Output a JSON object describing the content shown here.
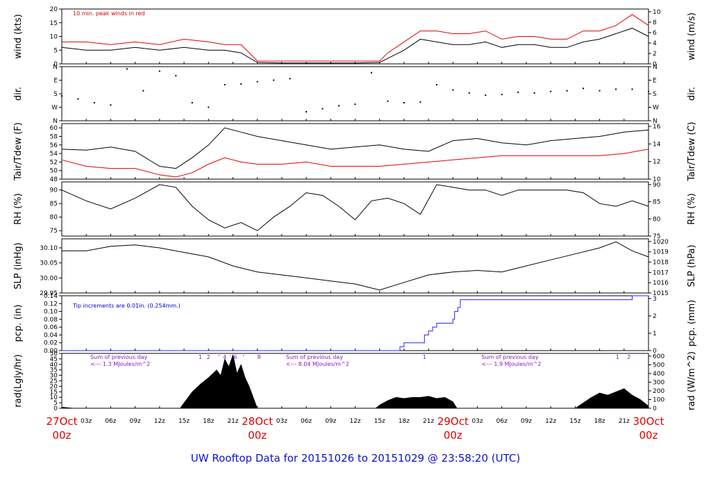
{
  "footer": "UW Rooftop Data for 20151026  to  20151029 @ 23:58:20  (UTC)",
  "colors": {
    "day_label": "#e00000",
    "wind_peak": "#e00000",
    "tdew": "#e00000",
    "pcp": "#2020ff",
    "footer": "#1010d0",
    "rad_note": "#8a1ab0",
    "tip_note": "#0000c0"
  },
  "x_axis": {
    "day_labels": [
      {
        "t": 0,
        "day": "27Oct",
        "hour": "00z"
      },
      {
        "t": 24,
        "day": "28Oct",
        "hour": "00z"
      },
      {
        "t": 48,
        "day": "29Oct",
        "hour": "00z"
      },
      {
        "t": 72,
        "day": "30Oct",
        "hour": "00z"
      }
    ],
    "hour_labels": [
      "03z",
      "06z",
      "09z",
      "12z",
      "15z",
      "18z",
      "21z"
    ],
    "range_hours": [
      0,
      72
    ]
  },
  "chart_data": [
    {
      "type": "line",
      "ylabel_left": "wind (kts)",
      "ylabel_right": "wind (m/s)",
      "annotation": "10 min. peak winds in red",
      "ylim": [
        0,
        20
      ],
      "left_ticks": [
        "0",
        "5",
        "10",
        "15",
        "20"
      ],
      "right_ticks": [
        "0",
        "2",
        "4",
        "6",
        "8",
        "10"
      ],
      "series": [
        {
          "color": "#000000",
          "x": [
            0,
            3,
            6,
            9,
            12,
            15,
            18,
            20,
            22,
            24,
            27,
            30,
            33,
            36,
            39,
            40,
            42,
            44,
            46,
            48,
            50,
            52,
            54,
            56,
            58,
            60,
            62,
            64,
            66,
            68,
            70,
            72
          ],
          "y": [
            6,
            5,
            5,
            6,
            5,
            6,
            5,
            5,
            4,
            0.5,
            0.3,
            0.3,
            0.3,
            0.3,
            0.5,
            2,
            5,
            9,
            8,
            7,
            7,
            8,
            6,
            7,
            7,
            6,
            6,
            8,
            9,
            11,
            13,
            10
          ]
        },
        {
          "color": "#e00000",
          "x": [
            0,
            3,
            6,
            9,
            12,
            15,
            18,
            20,
            22,
            24,
            36,
            39,
            40,
            42,
            44,
            46,
            48,
            50,
            52,
            54,
            56,
            58,
            60,
            62,
            64,
            66,
            68,
            70,
            72
          ],
          "y": [
            8,
            8,
            7,
            8,
            7,
            9,
            8,
            7,
            7,
            1,
            1,
            1,
            4,
            8,
            12,
            12,
            11,
            11,
            12,
            9,
            10,
            10,
            9,
            9,
            12,
            12,
            14,
            18,
            14
          ]
        }
      ]
    },
    {
      "type": "scatter",
      "ylabel_left": "dir.",
      "ylabel_right": "dir.",
      "left_ticks": [
        "N",
        "E",
        "S",
        "W",
        "N"
      ],
      "right_ticks": [
        "N",
        "E",
        "S",
        "W",
        "N"
      ],
      "ylim": [
        0,
        360
      ],
      "series": [
        {
          "color": "#000000",
          "x": [
            0,
            2,
            4,
            6,
            8,
            10,
            12,
            14,
            16,
            18,
            20,
            22,
            24,
            26,
            28,
            30,
            32,
            34,
            36,
            38,
            40,
            42,
            44,
            46,
            48,
            50,
            52,
            54,
            56,
            58,
            60,
            62,
            64,
            66,
            68,
            70,
            72
          ],
          "y": [
            165,
            145,
            120,
            105,
            345,
            200,
            330,
            300,
            120,
            90,
            240,
            245,
            260,
            270,
            280,
            60,
            80,
            100,
            110,
            320,
            130,
            120,
            125,
            240,
            205,
            185,
            170,
            175,
            190,
            185,
            195,
            200,
            215,
            200,
            210,
            210,
            195
          ]
        }
      ]
    },
    {
      "type": "line",
      "ylabel_left": "Tair/Tdew (F)",
      "ylabel_right": "Tair/Tdew (C)",
      "ylim": [
        48,
        61
      ],
      "left_ticks": [
        "48",
        "50",
        "52",
        "54",
        "56",
        "58",
        "60"
      ],
      "right_ticks": [
        "10",
        "12",
        "14",
        "16"
      ],
      "series": [
        {
          "color": "#000000",
          "x": [
            0,
            3,
            6,
            9,
            12,
            14,
            16,
            18,
            20,
            22,
            24,
            27,
            30,
            33,
            36,
            39,
            42,
            45,
            48,
            51,
            54,
            57,
            60,
            63,
            66,
            69,
            72
          ],
          "y": [
            55,
            54.8,
            55.5,
            54.5,
            51,
            50.5,
            53,
            56,
            60,
            59,
            58,
            57,
            56,
            55,
            55.5,
            56,
            55,
            54.5,
            57,
            57.5,
            56.5,
            56,
            57,
            57.5,
            58,
            59,
            59.5
          ]
        },
        {
          "color": "#e00000",
          "x": [
            0,
            3,
            6,
            9,
            12,
            14,
            16,
            18,
            20,
            22,
            24,
            27,
            30,
            33,
            36,
            39,
            42,
            45,
            48,
            51,
            54,
            57,
            60,
            63,
            66,
            69,
            72
          ],
          "y": [
            52.5,
            51,
            50.5,
            50.5,
            49,
            48.5,
            49.5,
            51.5,
            53,
            52,
            51.5,
            51.5,
            52,
            51,
            51,
            51,
            51.5,
            52,
            52.5,
            53,
            53.5,
            53.5,
            53.5,
            53.5,
            53.5,
            54,
            55
          ]
        }
      ]
    },
    {
      "type": "line",
      "ylabel_left": "RH (%)",
      "ylabel_right": "RH (%)",
      "ylim": [
        73,
        93
      ],
      "left_ticks": [
        "75",
        "80",
        "85",
        "90"
      ],
      "right_ticks": [
        "75",
        "80",
        "85",
        "90"
      ],
      "series": [
        {
          "color": "#000000",
          "x": [
            0,
            3,
            6,
            9,
            12,
            14,
            16,
            18,
            20,
            22,
            24,
            26,
            28,
            30,
            32,
            34,
            36,
            38,
            40,
            42,
            44,
            46,
            48,
            50,
            52,
            54,
            56,
            58,
            60,
            62,
            64,
            66,
            68,
            70,
            72
          ],
          "y": [
            90,
            86,
            83,
            87,
            92,
            91,
            84,
            79,
            76,
            78,
            75,
            80,
            84,
            89,
            88,
            84,
            79,
            86,
            87,
            85,
            81,
            92,
            91,
            90,
            90,
            88,
            90,
            90,
            90,
            90,
            89,
            85,
            84,
            86,
            84
          ]
        }
      ]
    },
    {
      "type": "line",
      "ylabel_left": "SLP (inHg)",
      "ylabel_right": "SLP (hPa)",
      "ylim": [
        29.95,
        30.13
      ],
      "left_ticks": [
        "29.95",
        "30.00",
        "30.05",
        "30.10"
      ],
      "right_ticks": [
        "1015",
        "1016",
        "1017",
        "1018",
        "1019",
        "1020"
      ],
      "series": [
        {
          "color": "#000000",
          "x": [
            0,
            3,
            6,
            9,
            12,
            15,
            18,
            21,
            24,
            27,
            30,
            33,
            36,
            39,
            42,
            45,
            48,
            51,
            54,
            57,
            60,
            63,
            66,
            68,
            70,
            72
          ],
          "y": [
            30.09,
            30.09,
            30.105,
            30.11,
            30.1,
            30.085,
            30.07,
            30.04,
            30.02,
            30.01,
            30.0,
            29.99,
            29.98,
            29.96,
            29.985,
            30.01,
            30.02,
            30.025,
            30.02,
            30.04,
            30.06,
            30.08,
            30.1,
            30.12,
            30.09,
            30.07
          ]
        }
      ]
    },
    {
      "type": "line",
      "ylabel_left": "pcp. (in)",
      "ylabel_right": "pcp. (mm)",
      "annotation": "Tip increments are 0.01in. (0.254mm.)",
      "ylim": [
        0,
        0.14
      ],
      "left_ticks": [
        "0.00",
        "0.02",
        "0.04",
        "0.06",
        "0.08",
        "0.10",
        "0.12",
        "0.14"
      ],
      "right_ticks": [
        "0",
        "1",
        "2",
        "3"
      ],
      "series": [
        {
          "color": "#2020ff",
          "x": [
            0,
            41.5,
            41.5,
            42,
            42,
            44.5,
            44.5,
            45,
            45,
            45.5,
            45.5,
            46,
            46,
            48,
            48,
            48.2,
            48.2,
            48.6,
            48.6,
            48.9,
            48.9,
            49.2,
            49.2,
            70,
            70,
            72
          ],
          "y": [
            0,
            0,
            0.01,
            0.01,
            0.02,
            0.02,
            0.04,
            0.04,
            0.05,
            0.05,
            0.06,
            0.06,
            0.07,
            0.07,
            0.08,
            0.08,
            0.1,
            0.1,
            0.11,
            0.11,
            0.13,
            0.13,
            0.13,
            0.13,
            0.14,
            0.14
          ]
        }
      ]
    },
    {
      "type": "area",
      "ylabel_left": "rad(Lgly/hr)",
      "ylabel_right": "rad (W/m^2)",
      "ylim": [
        0,
        50
      ],
      "left_ticks": [
        "0",
        "5",
        "10",
        "15",
        "20",
        "25",
        "30",
        "35",
        "40",
        "45",
        "50"
      ],
      "right_ticks": [
        "0",
        "100",
        "200",
        "300",
        "400",
        "500",
        "600"
      ],
      "annotations": [
        {
          "t": 3.5,
          "text": "Sum of previous day"
        },
        {
          "t": 3.5,
          "text": "<--- 1.3 MJoules/m^2",
          "line": 2
        },
        {
          "t": 27.5,
          "text": "Sum of previous day"
        },
        {
          "t": 27.5,
          "text": "<--- 8.04 MJoules/m^2",
          "line": 2
        },
        {
          "t": 51.5,
          "text": "Sum of previous day"
        },
        {
          "t": 51.5,
          "text": "<--- 1.9 MJoules/m^2",
          "line": 2
        }
      ],
      "hour_marks": [
        {
          "t": 17,
          "text": "1"
        },
        {
          "t": 18,
          "text": "2"
        },
        {
          "t": 19.3,
          "text": "'"
        },
        {
          "t": 20,
          "text": "4"
        },
        {
          "t": 20.7,
          "text": "'"
        },
        {
          "t": 21.3,
          "text": "6"
        },
        {
          "t": 22.3,
          "text": "'"
        },
        {
          "t": 24.2,
          "text": "8"
        },
        {
          "t": 44.5,
          "text": "1"
        },
        {
          "t": 68.2,
          "text": "1"
        },
        {
          "t": 69.6,
          "text": "2"
        }
      ],
      "series": [
        {
          "color": "#000000",
          "x": [
            0,
            0.1,
            1.5,
            2,
            14.5,
            15,
            16,
            17,
            18,
            19,
            19.5,
            20,
            20.5,
            21,
            21.5,
            22,
            22.5,
            23,
            23.5,
            24,
            38.5,
            39,
            40,
            41,
            42,
            43,
            44,
            45,
            46,
            47,
            48,
            48.5,
            63,
            64,
            65,
            66,
            67,
            68,
            69,
            70,
            71,
            72
          ],
          "y": [
            1,
            1,
            0,
            0,
            0,
            5,
            15,
            22,
            28,
            35,
            30,
            45,
            38,
            49,
            32,
            40,
            28,
            20,
            10,
            0,
            0,
            3,
            7,
            10,
            9,
            10,
            10,
            11,
            9,
            10,
            6,
            0,
            0,
            5,
            10,
            14,
            12,
            15,
            18,
            12,
            8,
            2
          ]
        }
      ]
    }
  ]
}
